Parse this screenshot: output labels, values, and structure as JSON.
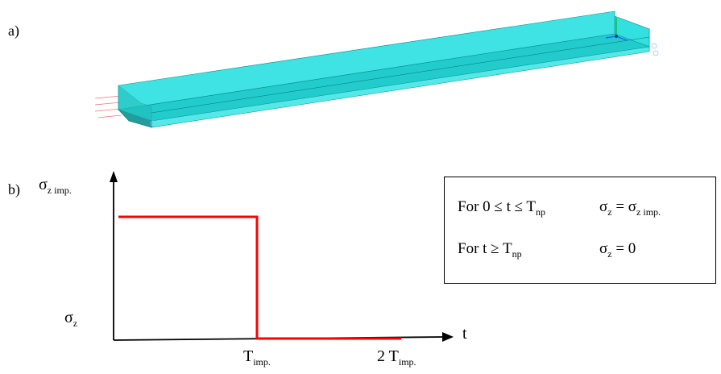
{
  "panel_a": {
    "label": "a)"
  },
  "panel_b": {
    "label": "b)",
    "y_axis_top_label_main": "σ",
    "y_axis_top_label_sub": "z imp.",
    "y_axis_bottom_label_main": "σ",
    "y_axis_bottom_label_sub": "z",
    "x_axis_label": "t",
    "tick1_main": "T",
    "tick1_sub": "imp.",
    "tick2_main": "2 T",
    "tick2_sub": "imp.",
    "signal_color": "#ff0000",
    "box": {
      "row1_left_main": "For 0 ≤ t ≤ T",
      "row1_left_sub": "np",
      "row1_right_a": "σ",
      "row1_right_a_sub": "z",
      "row1_right_b": " = σ",
      "row1_right_b_sub": "z imp.",
      "row2_left_main": "For t ≥ T",
      "row2_left_sub": "np",
      "row2_right_a": "σ",
      "row2_right_a_sub": "z",
      "row2_right_b": " = 0"
    }
  }
}
